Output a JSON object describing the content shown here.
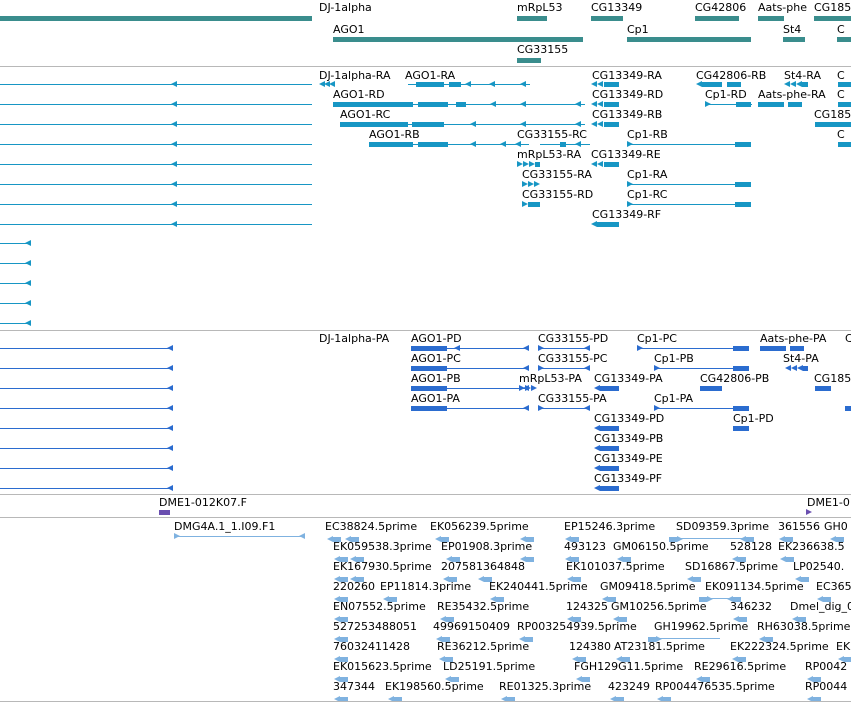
{
  "colors": {
    "gene": "#3a8d8d",
    "transcript_cdna": "#1796c4",
    "transcript_prot": "#2b6ccf",
    "clone": "#6a4fb0",
    "est": "#7fb2e0",
    "separator": "#b8b8b8"
  },
  "tracks": {
    "genes": [
      {
        "label": "DJ-1alpha"
      },
      {
        "label": "mRpL53"
      },
      {
        "label": "CG13349"
      },
      {
        "label": "CG42806"
      },
      {
        "label": "Aats-phe"
      },
      {
        "label": "CG185"
      },
      {
        "label": "AGO1"
      },
      {
        "label": "Cp1"
      },
      {
        "label": "St4"
      },
      {
        "label": "C"
      },
      {
        "label": "CG33155"
      }
    ],
    "transcripts_cdna": [
      {
        "label": "DJ-1alpha-RA"
      },
      {
        "label": "AGO1-RA"
      },
      {
        "label": "CG13349-RA"
      },
      {
        "label": "CG42806-RB"
      },
      {
        "label": "St4-RA"
      },
      {
        "label": "C"
      },
      {
        "label": "AGO1-RD"
      },
      {
        "label": "CG13349-RD"
      },
      {
        "label": "Cp1-RD"
      },
      {
        "label": "Aats-phe-RA"
      },
      {
        "label": "C"
      },
      {
        "label": "AGO1-RC"
      },
      {
        "label": "CG13349-RB"
      },
      {
        "label": "CG185"
      },
      {
        "label": "AGO1-RB"
      },
      {
        "label": "CG33155-RC"
      },
      {
        "label": "Cp1-RB"
      },
      {
        "label": "C"
      },
      {
        "label": "mRpL53-RA"
      },
      {
        "label": "CG13349-RE"
      },
      {
        "label": "CG33155-RA"
      },
      {
        "label": "Cp1-RA"
      },
      {
        "label": "CG33155-RD"
      },
      {
        "label": "Cp1-RC"
      },
      {
        "label": "CG13349-RF"
      }
    ],
    "transcripts_prot": [
      {
        "label": "DJ-1alpha-PA"
      },
      {
        "label": "AGO1-PD"
      },
      {
        "label": "CG33155-PD"
      },
      {
        "label": "Cp1-PC"
      },
      {
        "label": "Aats-phe-PA"
      },
      {
        "label": "C"
      },
      {
        "label": "AGO1-PC"
      },
      {
        "label": "CG33155-PC"
      },
      {
        "label": "Cp1-PB"
      },
      {
        "label": "St4-PA"
      },
      {
        "label": "AGO1-PB"
      },
      {
        "label": "mRpL53-PA"
      },
      {
        "label": "CG13349-PA"
      },
      {
        "label": "CG42806-PB"
      },
      {
        "label": "CG185"
      },
      {
        "label": "AGO1-PA"
      },
      {
        "label": "CG33155-PA"
      },
      {
        "label": "Cp1-PA"
      },
      {
        "label": "CG13349-PD"
      },
      {
        "label": "Cp1-PD"
      },
      {
        "label": "CG13349-PB"
      },
      {
        "label": "CG13349-PE"
      },
      {
        "label": "CG13349-PF"
      }
    ],
    "clones": [
      {
        "label": "DME1-012K07.F"
      },
      {
        "label": "DME1-0"
      }
    ],
    "ests": [
      {
        "label": "DMG4A.1_1.I09.F1"
      },
      {
        "label": "EC38824.5prime"
      },
      {
        "label": "EK056239.5prime"
      },
      {
        "label": "EP15246.3prime"
      },
      {
        "label": "SD09359.3prime"
      },
      {
        "label": "361556"
      },
      {
        "label": "GH0"
      },
      {
        "label": "EK059538.3prime"
      },
      {
        "label": "EP01908.3prime"
      },
      {
        "label": "493123"
      },
      {
        "label": "GM06150.5prime"
      },
      {
        "label": "528128"
      },
      {
        "label": "EK236638.5"
      },
      {
        "label": "EK167930.5prime"
      },
      {
        "label": "20758"
      },
      {
        "label": "1364848"
      },
      {
        "label": "EK101037.5prime"
      },
      {
        "label": "SD16867.5prime"
      },
      {
        "label": "LP02540."
      },
      {
        "label": "220260"
      },
      {
        "label": "EP11814.3prime"
      },
      {
        "label": "EK240441.5prime"
      },
      {
        "label": "GM09418.5prime"
      },
      {
        "label": "EK091134.5prime"
      },
      {
        "label": "EC365"
      },
      {
        "label": "EN07552.5prime"
      },
      {
        "label": "RE35432.5prime"
      },
      {
        "label": "124325"
      },
      {
        "label": "GM10256.5prime"
      },
      {
        "label": "346232"
      },
      {
        "label": "Dmel_dig_0"
      },
      {
        "label": "527253488051"
      },
      {
        "label": "49969150409"
      },
      {
        "label": "RP003254939.5prime"
      },
      {
        "label": "GH19962.5prime"
      },
      {
        "label": "RH63038.5prime"
      },
      {
        "label": "76032411428"
      },
      {
        "label": "RE36212.5prime"
      },
      {
        "label": "124380"
      },
      {
        "label": "AT23181.5prime"
      },
      {
        "label": "EK222324.5prime"
      },
      {
        "label": "EK"
      },
      {
        "label": "EK015623.5prime"
      },
      {
        "label": "LD25191.5prime"
      },
      {
        "label": "FGH129G11.5prime"
      },
      {
        "label": "RE29616.5prime"
      },
      {
        "label": "RP0042"
      },
      {
        "label": "347344"
      },
      {
        "label": "EK198560.5prime"
      },
      {
        "label": "RE01325.3prime"
      },
      {
        "label": "423249"
      },
      {
        "label": "RP004476535.5prime"
      },
      {
        "label": "RP0044"
      }
    ]
  }
}
